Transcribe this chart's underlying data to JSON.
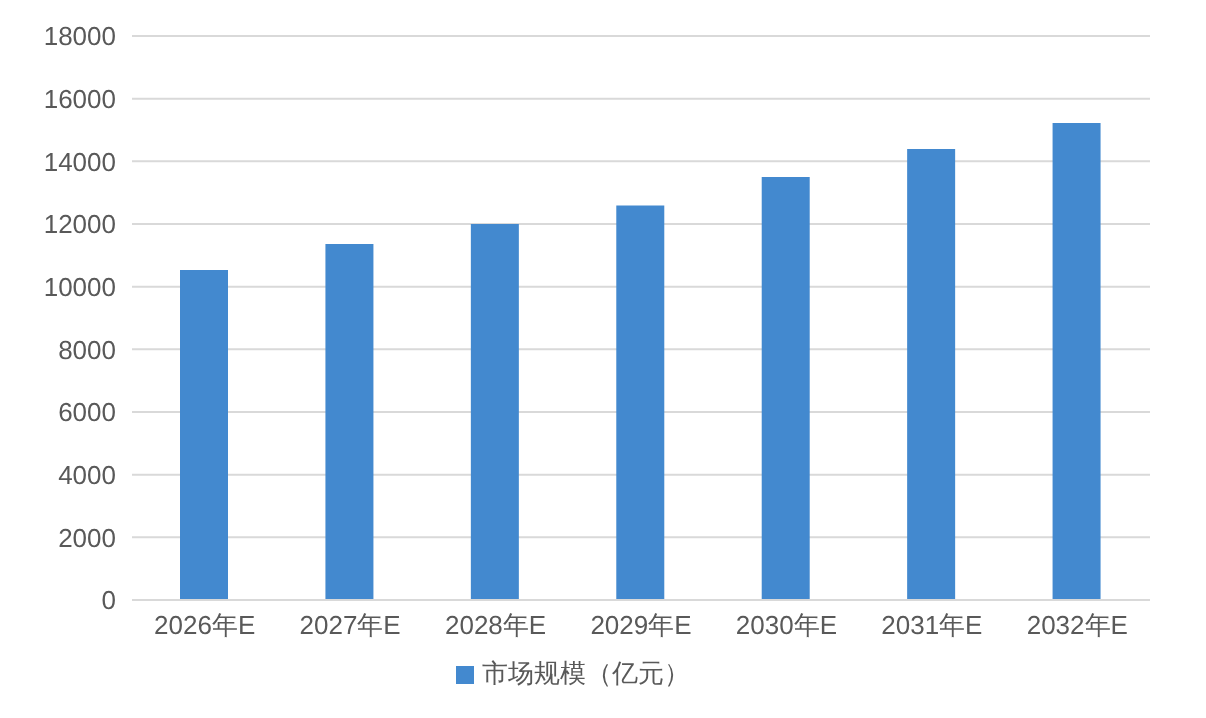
{
  "chart_data": {
    "type": "bar",
    "categories": [
      "2026年E",
      "2027年E",
      "2028年E",
      "2029年E",
      "2030年E",
      "2031年E",
      "2032年E"
    ],
    "series": [
      {
        "name": "市场规模（亿元）",
        "color": "#4389cf",
        "values": [
          10530,
          11360,
          12000,
          12590,
          13500,
          14390,
          15220
        ]
      }
    ],
    "ylim": [
      0,
      18000
    ],
    "yticks": [
      0,
      2000,
      4000,
      6000,
      8000,
      10000,
      12000,
      14000,
      16000,
      18000
    ],
    "grid": "y",
    "legend": "bottom"
  }
}
